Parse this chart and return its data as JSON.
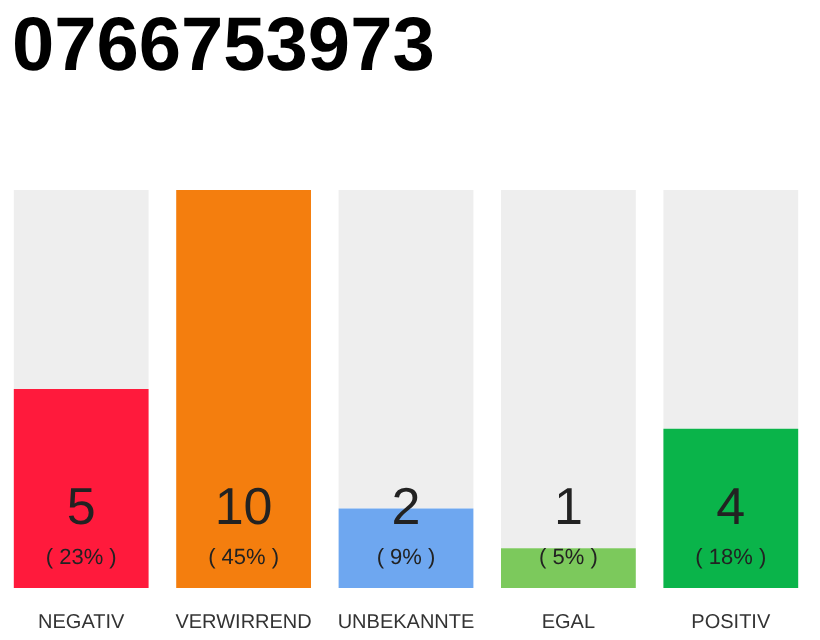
{
  "chart_data": {
    "type": "bar",
    "title": "0766753973",
    "categories": [
      "NEGATIV",
      "VERWIRREND",
      "UNBEKANNTE",
      "EGAL",
      "POSITIV"
    ],
    "stacked": true,
    "series": [
      {
        "colors": [
          "#ff1a3c",
          "#f47e0e",
          "#6ea7f0",
          "#7cc95c",
          "#0ab44a"
        ],
        "values": [
          5,
          10,
          2,
          1,
          4
        ],
        "value_labels": [
          "5",
          "10",
          "2",
          "1",
          "4"
        ]
      },
      {
        "color": "#eeeeee",
        "values": [
          5,
          0,
          8,
          9,
          6
        ],
        "value_labels": [
          null,
          null,
          null,
          null,
          null
        ]
      }
    ],
    "annotations": [
      "( 23% )",
      "( 45% )",
      "( 9% )",
      "( 5% )",
      "( 18% )"
    ]
  }
}
